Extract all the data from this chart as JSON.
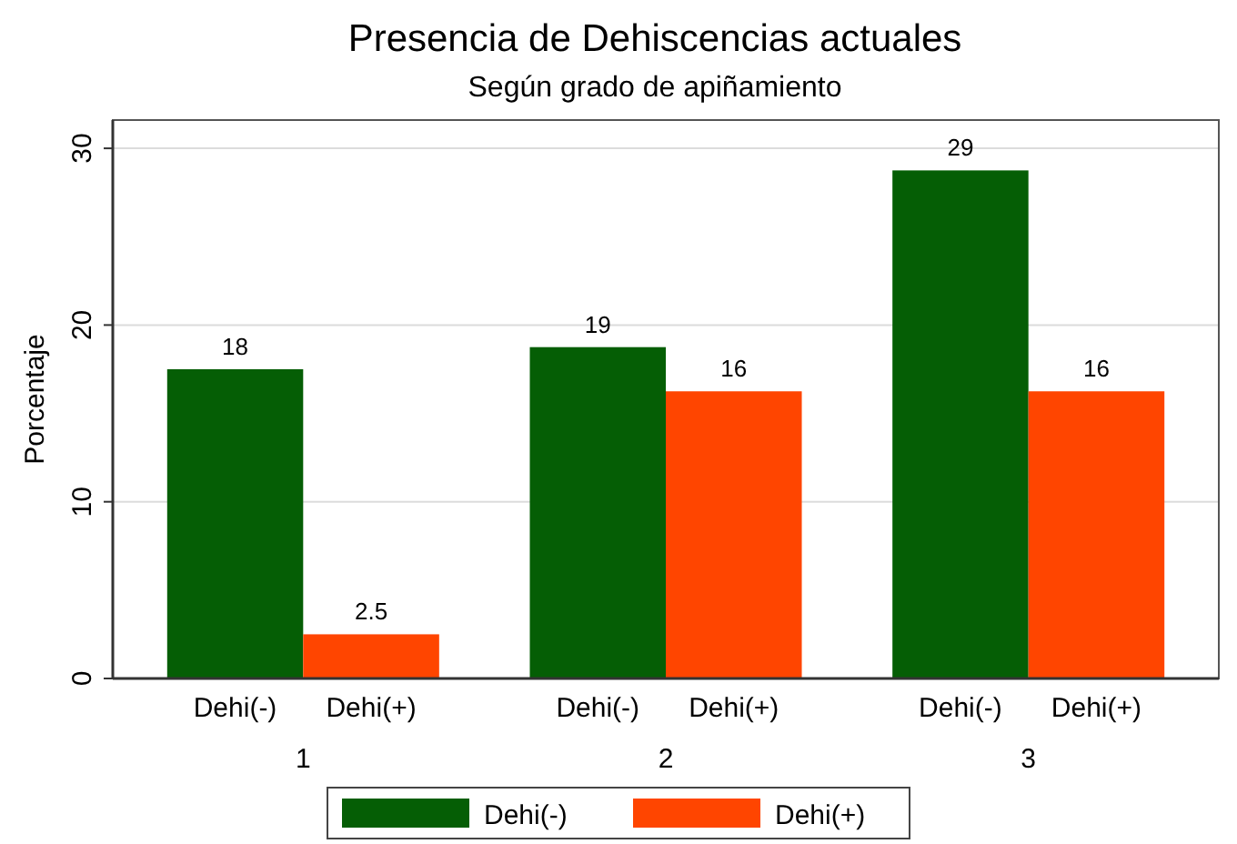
{
  "chart_data": {
    "type": "bar",
    "title": "Presencia de Dehiscencias actuales",
    "subtitle": "Según grado de apiñamiento",
    "ylabel": "Porcentaje",
    "categories": [
      "1",
      "2",
      "3"
    ],
    "series": [
      {
        "name": "Dehi(-)",
        "color": "#055e05",
        "values": [
          17.5,
          18.75,
          28.75
        ],
        "value_labels": [
          "18",
          "19",
          "29"
        ]
      },
      {
        "name": "Dehi(+)",
        "color": "#ff4500",
        "values": [
          2.5,
          16.25,
          16.25
        ],
        "value_labels": [
          "2.5",
          "16",
          "16"
        ]
      }
    ],
    "ylim": [
      0,
      31.6
    ],
    "yticks": [
      0,
      10,
      20,
      30
    ],
    "grid": "y",
    "legend": "bottom"
  }
}
